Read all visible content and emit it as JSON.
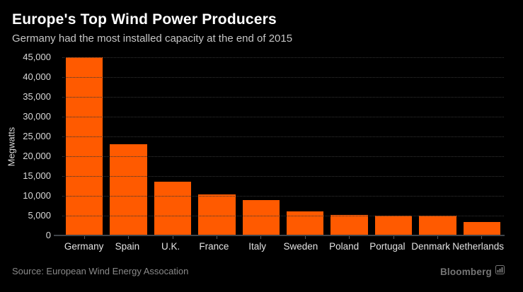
{
  "header": {
    "title": "Europe's Top Wind Power Producers",
    "subtitle": "Germany had the most installed capacity at the end of 2015"
  },
  "chart_data": {
    "type": "bar",
    "title": "Europe's Top Wind Power Producers",
    "subtitle": "Germany had the most installed capacity at the end of 2015",
    "ylabel": "Megwatts",
    "xlabel": "",
    "categories": [
      "Germany",
      "Spain",
      "U.K.",
      "France",
      "Italy",
      "Sweden",
      "Poland",
      "Portugal",
      "Denmark",
      "Netherlands"
    ],
    "values": [
      44950,
      23000,
      13600,
      10400,
      8950,
      6000,
      5100,
      5080,
      5060,
      3430
    ],
    "ylim": [
      0,
      45000
    ],
    "ytick_step": 5000,
    "ytick_labels": [
      "45,000",
      "40,000",
      "35,000",
      "30,000",
      "25,000",
      "20,000",
      "15,000",
      "10,000",
      "5,000",
      "0"
    ],
    "grid": "horizontal-dotted",
    "legend": "none",
    "bar_color": "#ff5a00"
  },
  "footer": {
    "source": "Source: European Wind Energy Assocation",
    "brand": "Bloomberg",
    "brand_icon": "chart-bars-icon"
  },
  "colors": {
    "background": "#000000",
    "bar": "#ff5a00",
    "title": "#ffffff",
    "subtitle": "#c6c6c6",
    "tick_text": "#d9d9d9",
    "gridline": "#343434",
    "axis_line": "#3f4449",
    "source_text": "#8a8a8a",
    "brand_text": "#757575"
  }
}
